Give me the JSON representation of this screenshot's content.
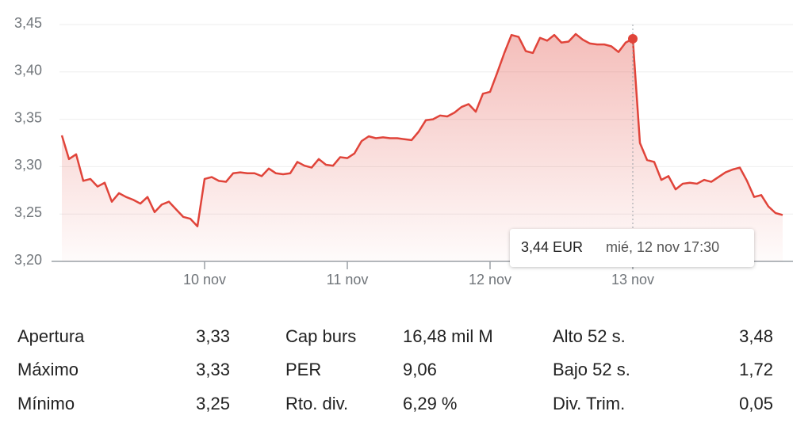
{
  "chart_data": {
    "type": "line",
    "color": "#e0443a",
    "categories": [
      null,
      null,
      null,
      null,
      null,
      null,
      null,
      null,
      null,
      null,
      null,
      null,
      null,
      null,
      null,
      null,
      null,
      null,
      null,
      null,
      "10 nov",
      null,
      null,
      null,
      null,
      null,
      null,
      null,
      null,
      null,
      null,
      null,
      null,
      null,
      null,
      null,
      null,
      null,
      null,
      null,
      "11 nov",
      null,
      null,
      null,
      null,
      null,
      null,
      null,
      null,
      null,
      null,
      null,
      null,
      null,
      null,
      null,
      null,
      null,
      null,
      null,
      "12 nov",
      null,
      null,
      null,
      null,
      null,
      null,
      null,
      null,
      null,
      null,
      null,
      null,
      null,
      null,
      null,
      null,
      null,
      null,
      null,
      "13 nov",
      null,
      null,
      null,
      null,
      null,
      null,
      null,
      null,
      null,
      null,
      null,
      null,
      null,
      null,
      null,
      null,
      null,
      null,
      null,
      null,
      null
    ],
    "values": [
      3.333,
      3.308,
      3.313,
      3.285,
      3.287,
      3.279,
      3.283,
      3.263,
      3.272,
      3.268,
      3.265,
      3.261,
      3.268,
      3.252,
      3.26,
      3.263,
      3.255,
      3.247,
      3.245,
      3.237,
      3.287,
      3.289,
      3.285,
      3.284,
      3.293,
      3.294,
      3.293,
      3.293,
      3.29,
      3.298,
      3.293,
      3.292,
      3.293,
      3.305,
      3.301,
      3.299,
      3.308,
      3.302,
      3.301,
      3.31,
      3.309,
      3.314,
      3.327,
      3.332,
      3.33,
      3.331,
      3.33,
      3.33,
      3.329,
      3.328,
      3.337,
      3.349,
      3.35,
      3.354,
      3.353,
      3.357,
      3.363,
      3.366,
      3.358,
      3.377,
      3.379,
      3.399,
      3.42,
      3.439,
      3.437,
      3.422,
      3.42,
      3.436,
      3.433,
      3.439,
      3.431,
      3.432,
      3.44,
      3.434,
      3.43,
      3.429,
      3.429,
      3.427,
      3.421,
      3.431,
      3.435,
      3.325,
      3.307,
      3.305,
      3.286,
      3.29,
      3.276,
      3.282,
      3.283,
      3.282,
      3.286,
      3.284,
      3.289,
      3.294,
      3.297,
      3.299,
      3.285,
      3.268,
      3.27,
      3.258,
      3.251,
      3.249
    ],
    "ylim": [
      3.2,
      3.45
    ],
    "yticks": [
      {
        "value": 3.2,
        "label": "3,20"
      },
      {
        "value": 3.25,
        "label": "3,25"
      },
      {
        "value": 3.3,
        "label": "3,30"
      },
      {
        "value": 3.35,
        "label": "3,35"
      },
      {
        "value": 3.4,
        "label": "3,40"
      },
      {
        "value": 3.45,
        "label": "3,45"
      }
    ],
    "grid": true,
    "tooltip": {
      "label": "3,44 EUR",
      "time": "mié, 12 nov 17:30"
    }
  },
  "stats": [
    [
      [
        "Apertura",
        "3,33"
      ],
      [
        "Máximo",
        "3,33"
      ],
      [
        "Mínimo",
        "3,25"
      ]
    ],
    [
      [
        "Cap burs",
        "16,48 mil M"
      ],
      [
        "PER",
        "9,06"
      ],
      [
        "Rto. div.",
        "6,29 %"
      ]
    ],
    [
      [
        "Alto 52 s.",
        "3,48"
      ],
      [
        "Bajo 52 s.",
        "1,72"
      ],
      [
        "Div. Trim.",
        "0,05"
      ]
    ]
  ]
}
